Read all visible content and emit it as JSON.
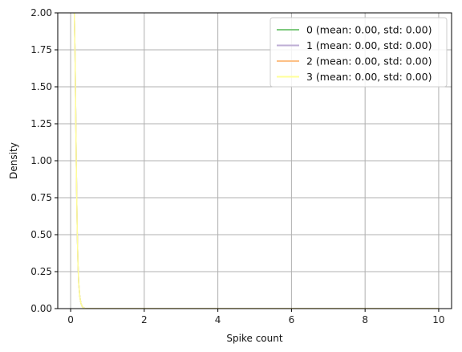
{
  "chart_data": {
    "type": "line",
    "title": "",
    "xlabel": "Spike count",
    "ylabel": "Density",
    "xlim": [
      -0.35,
      10.35
    ],
    "ylim": [
      0,
      2
    ],
    "xticks": [
      0,
      2,
      4,
      6,
      8,
      10
    ],
    "yticks": [
      0.0,
      0.25,
      0.5,
      0.75,
      1.0,
      1.25,
      1.5,
      1.75,
      2.0
    ],
    "xtick_labels": [
      "0",
      "2",
      "4",
      "6",
      "8",
      "10"
    ],
    "ytick_labels": [
      "0.00",
      "0.25",
      "0.50",
      "0.75",
      "1.00",
      "1.25",
      "1.50",
      "1.75",
      "2.00"
    ],
    "grid": true,
    "legend_position": "top-right",
    "series": [
      {
        "name": "0 (mean: 0.00, std: 0.00)",
        "color": "#7fc97f",
        "x": [
          0.1,
          0.12,
          0.14,
          0.16,
          0.18,
          0.2,
          0.22,
          0.25,
          0.28,
          0.32,
          0.36,
          0.4,
          0.5,
          1,
          2,
          4,
          6,
          8,
          10
        ],
        "y": [
          2.0,
          1.72,
          1.28,
          0.85,
          0.52,
          0.3,
          0.17,
          0.08,
          0.035,
          0.012,
          0.004,
          0.001,
          0,
          0,
          0,
          0,
          0,
          0,
          0
        ]
      },
      {
        "name": "1 (mean: 0.00, std: 0.00)",
        "color": "#beaed4",
        "x": [
          0.1,
          0.12,
          0.14,
          0.16,
          0.18,
          0.2,
          0.22,
          0.25,
          0.28,
          0.32,
          0.36,
          0.4,
          0.5,
          1,
          2,
          4,
          6,
          8,
          10
        ],
        "y": [
          2.0,
          1.72,
          1.28,
          0.85,
          0.52,
          0.3,
          0.17,
          0.08,
          0.035,
          0.012,
          0.004,
          0.001,
          0,
          0,
          0,
          0,
          0,
          0,
          0
        ]
      },
      {
        "name": "2 (mean: 0.00, std: 0.00)",
        "color": "#fdc086",
        "x": [
          0.1,
          0.12,
          0.14,
          0.16,
          0.18,
          0.2,
          0.22,
          0.25,
          0.28,
          0.32,
          0.36,
          0.4,
          0.5,
          1,
          2,
          4,
          6,
          8,
          10
        ],
        "y": [
          2.0,
          1.72,
          1.28,
          0.85,
          0.52,
          0.3,
          0.17,
          0.08,
          0.035,
          0.012,
          0.004,
          0.001,
          0,
          0,
          0,
          0,
          0,
          0,
          0
        ]
      },
      {
        "name": "3 (mean: 0.00, std: 0.00)",
        "color": "#ffff99",
        "x": [
          0.1,
          0.12,
          0.14,
          0.16,
          0.18,
          0.2,
          0.22,
          0.25,
          0.28,
          0.32,
          0.36,
          0.4,
          0.5,
          1,
          2,
          4,
          6,
          8,
          10
        ],
        "y": [
          2.0,
          1.72,
          1.28,
          0.85,
          0.52,
          0.3,
          0.17,
          0.08,
          0.035,
          0.012,
          0.004,
          0.001,
          0,
          0,
          0,
          0,
          0,
          0,
          0
        ]
      }
    ]
  }
}
